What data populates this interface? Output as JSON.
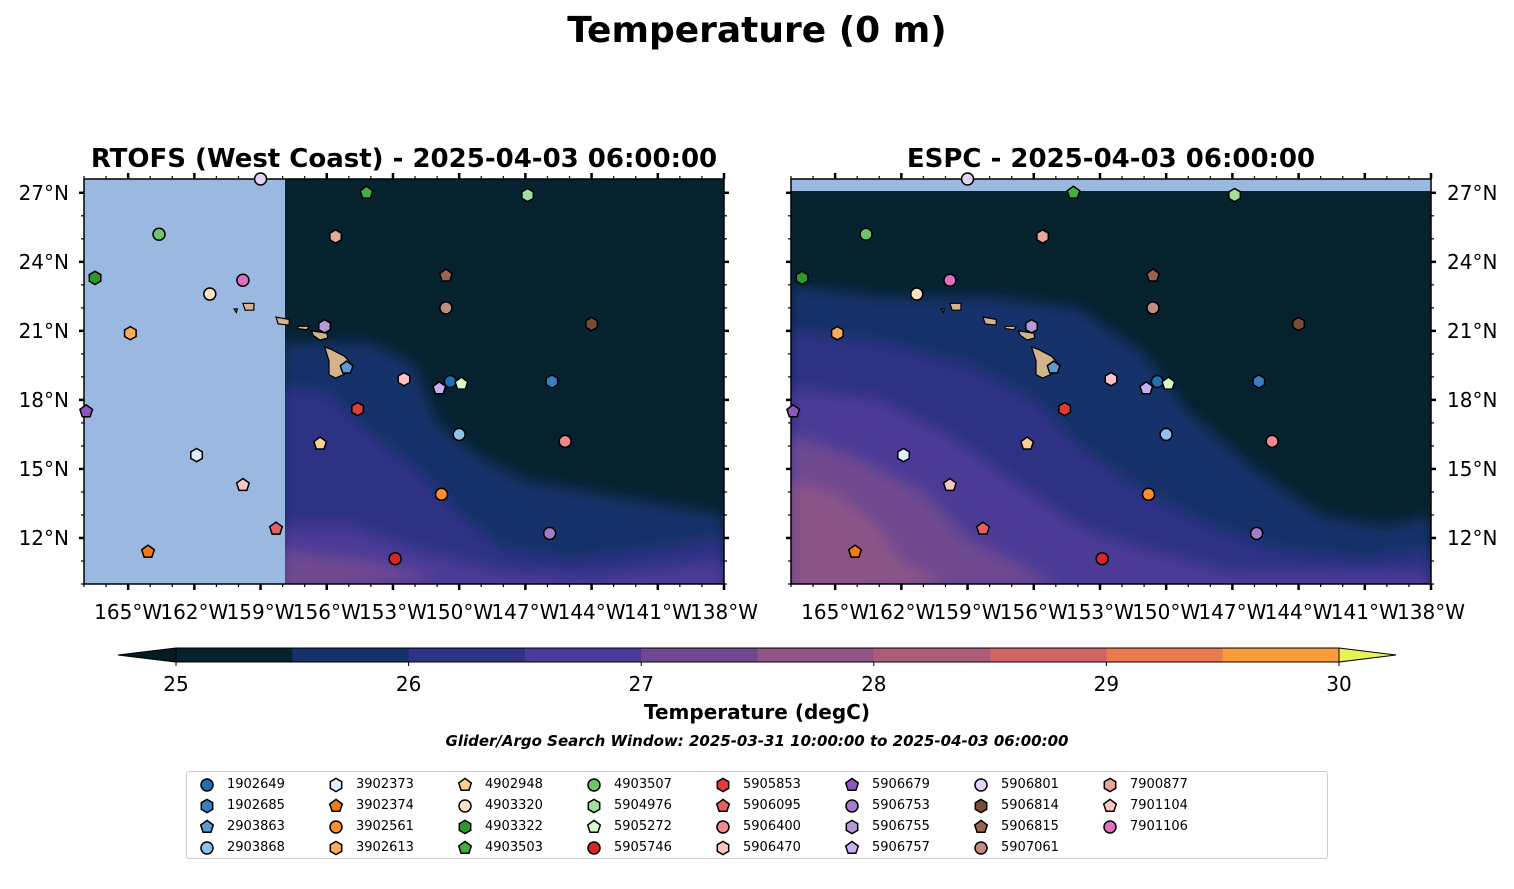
{
  "figure_title": "Temperature (0 m)",
  "colorbar": {
    "label": "Temperature (degC)",
    "ticks": [
      25,
      26,
      27,
      28,
      29,
      30
    ],
    "levels": [
      25,
      25.5,
      26,
      26.5,
      27,
      27.5,
      28,
      28.5,
      29,
      29.5,
      30
    ],
    "colors": [
      "#06222f",
      "#16306a",
      "#2f3385",
      "#4b3a97",
      "#704890",
      "#8f5686",
      "#ad5d78",
      "#d06465",
      "#ec7a50",
      "#fb9b3a",
      "#fcc33a"
    ],
    "under_color": "#031b22",
    "over_color": "#e6f25a"
  },
  "search_window": "Glider/Argo Search Window: 2025-03-31 10:00:00 to 2025-04-03 06:00:00",
  "land_color": "#d2b48c",
  "nodata_color": "#9ab8e0",
  "maps": [
    {
      "title": "RTOFS (West Coast) - 2025-04-03 06:00:00",
      "lat_ticks": [
        "27°N",
        "24°N",
        "21°N",
        "18°N",
        "15°N",
        "12°N"
      ],
      "lon_ticks": [
        "165°W",
        "162°W",
        "159°W",
        "156°W",
        "153°W",
        "150°W",
        "147°W",
        "144°W",
        "141°W",
        "138°W"
      ],
      "lat_label_side": "left"
    },
    {
      "title": "ESPC - 2025-04-03 06:00:00",
      "lat_ticks": [
        "27°N",
        "24°N",
        "21°N",
        "18°N",
        "15°N",
        "12°N"
      ],
      "lon_ticks": [
        "165°W",
        "162°W",
        "159°W",
        "156°W",
        "153°W",
        "150°W",
        "147°W",
        "144°W",
        "141°W",
        "138°W"
      ],
      "lat_label_side": "right"
    }
  ],
  "extent": {
    "lon_min": -167,
    "lon_max": -138,
    "lat_min": 10,
    "lat_max": 27.6
  },
  "floats": [
    {
      "id": "1902649",
      "marker": "circle",
      "color": "#1f6fb5",
      "lon": -150.4,
      "lat": 18.8
    },
    {
      "id": "1902685",
      "marker": "hexagon",
      "color": "#3a7dc0",
      "lon": -145.8,
      "lat": 18.8
    },
    {
      "id": "2903863",
      "marker": "pentagon",
      "color": "#5a9bd5",
      "lon": -155.1,
      "lat": 19.4
    },
    {
      "id": "2903868",
      "marker": "circle",
      "color": "#8fc3ec",
      "lon": -150.0,
      "lat": 16.5
    },
    {
      "id": "3902373",
      "marker": "hexagon",
      "color": "#dfeefc",
      "lon": -161.9,
      "lat": 15.6
    },
    {
      "id": "3902374",
      "marker": "pentagon",
      "color": "#f07c13",
      "lon": -164.1,
      "lat": 11.4
    },
    {
      "id": "3902561",
      "marker": "circle",
      "color": "#fd8d2e",
      "lon": -150.8,
      "lat": 13.9
    },
    {
      "id": "3902613",
      "marker": "hexagon",
      "color": "#fcab5a",
      "lon": -164.9,
      "lat": 20.9
    },
    {
      "id": "4902948",
      "marker": "pentagon",
      "color": "#fdcd95",
      "lon": -156.3,
      "lat": 16.1
    },
    {
      "id": "4903320",
      "marker": "circle",
      "color": "#fde2c2",
      "lon": -161.3,
      "lat": 22.6
    },
    {
      "id": "4903322",
      "marker": "hexagon",
      "color": "#2a9a2a",
      "lon": -166.5,
      "lat": 23.3
    },
    {
      "id": "4903503",
      "marker": "pentagon",
      "color": "#45ad45",
      "lon": -154.2,
      "lat": 27.0
    },
    {
      "id": "4903507",
      "marker": "circle",
      "color": "#6cc56c",
      "lon": -163.6,
      "lat": 25.2
    },
    {
      "id": "5904976",
      "marker": "hexagon",
      "color": "#9fe09f",
      "lon": -146.9,
      "lat": 26.9
    },
    {
      "id": "5905272",
      "marker": "pentagon",
      "color": "#d6fbc8",
      "lon": -149.9,
      "lat": 18.7
    },
    {
      "id": "5905746",
      "marker": "circle",
      "color": "#d62728",
      "lon": -152.9,
      "lat": 11.1
    },
    {
      "id": "5905853",
      "marker": "hexagon",
      "color": "#de3b3b",
      "lon": -154.6,
      "lat": 17.6
    },
    {
      "id": "5906095",
      "marker": "pentagon",
      "color": "#e56161",
      "lon": -158.3,
      "lat": 12.4
    },
    {
      "id": "5906400",
      "marker": "circle",
      "color": "#f08a8a",
      "lon": -145.2,
      "lat": 16.2
    },
    {
      "id": "5906470",
      "marker": "hexagon",
      "color": "#fbc4c4",
      "lon": -152.5,
      "lat": 18.9
    },
    {
      "id": "5906679",
      "marker": "pentagon",
      "color": "#8e57bd",
      "lon": -166.9,
      "lat": 17.5
    },
    {
      "id": "5906753",
      "marker": "circle",
      "color": "#a47ccc",
      "lon": -145.9,
      "lat": 12.2
    },
    {
      "id": "5906755",
      "marker": "hexagon",
      "color": "#b59ad8",
      "lon": -156.1,
      "lat": 21.2
    },
    {
      "id": "5906757",
      "marker": "pentagon",
      "color": "#c9aff0",
      "lon": -150.9,
      "lat": 18.5
    },
    {
      "id": "5906801",
      "marker": "circle",
      "color": "#e3d3f5",
      "lon": -159.0,
      "lat": 27.6
    },
    {
      "id": "5906814",
      "marker": "hexagon",
      "color": "#7b4b3a",
      "lon": -144.0,
      "lat": 21.3
    },
    {
      "id": "5906815",
      "marker": "pentagon",
      "color": "#9a6451",
      "lon": -150.6,
      "lat": 23.4
    },
    {
      "id": "5907061",
      "marker": "circle",
      "color": "#c08d80",
      "lon": -150.6,
      "lat": 22.0
    },
    {
      "id": "7900877",
      "marker": "hexagon",
      "color": "#e6a898",
      "lon": -155.6,
      "lat": 25.1
    },
    {
      "id": "7901104",
      "marker": "pentagon",
      "color": "#f9c7c1",
      "lon": -159.8,
      "lat": 14.3
    },
    {
      "id": "7901106",
      "marker": "circle",
      "color": "#dd6fbf",
      "lon": -159.8,
      "lat": 23.2
    }
  ]
}
